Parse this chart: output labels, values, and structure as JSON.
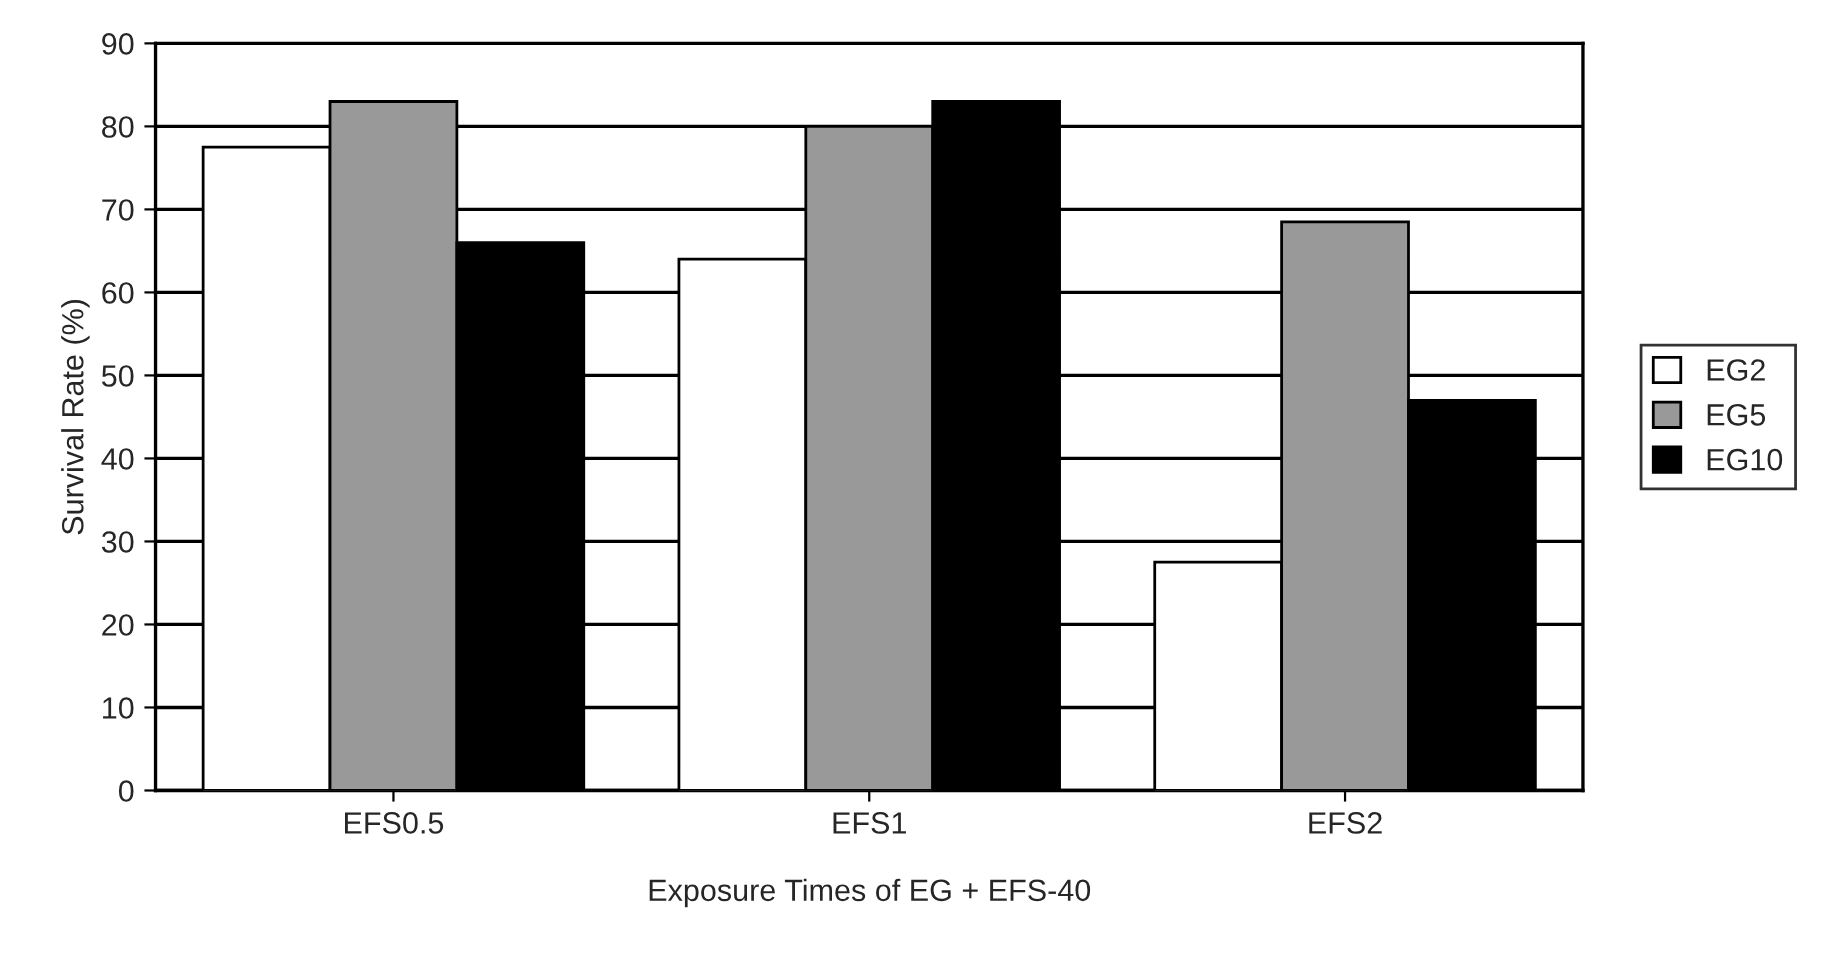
{
  "chart_data": {
    "type": "bar",
    "xlabel": "Exposure Times of EG + EFS-40",
    "ylabel": "Survival Rate (%)",
    "categories": [
      "EFS0.5",
      "EFS1",
      "EFS2"
    ],
    "series": [
      {
        "name": "EG2",
        "color": "#ffffff",
        "values": [
          77.5,
          64,
          27.5
        ]
      },
      {
        "name": "EG5",
        "color": "#999999",
        "values": [
          83,
          80,
          68.5
        ]
      },
      {
        "name": "EG10",
        "color": "#000000",
        "values": [
          66,
          83,
          47
        ]
      }
    ],
    "ylim": [
      0,
      90
    ],
    "yticks": [
      0,
      10,
      20,
      30,
      40,
      50,
      60,
      70,
      80,
      90
    ],
    "grid": "y",
    "legend": "right"
  }
}
